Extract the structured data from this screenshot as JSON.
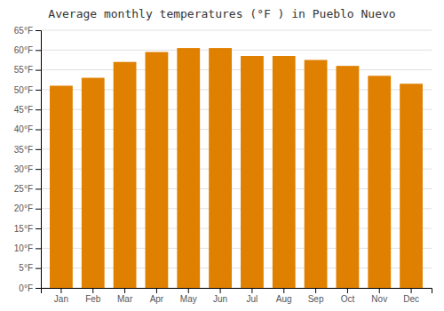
{
  "chart_data": {
    "type": "bar",
    "title": "Average monthly temperatures (°F ) in Pueblo Nuevo",
    "categories": [
      "Jan",
      "Feb",
      "Mar",
      "Apr",
      "May",
      "Jun",
      "Jul",
      "Aug",
      "Sep",
      "Oct",
      "Nov",
      "Dec"
    ],
    "values": [
      51,
      53,
      57,
      59.5,
      60.5,
      60.5,
      58.5,
      58.5,
      57.5,
      56,
      53.5,
      51.5
    ],
    "color": "#E08000",
    "ylim": [
      0,
      65
    ],
    "yticks": [
      {
        "value": 0,
        "label": "0°F"
      },
      {
        "value": 5,
        "label": "5°F"
      },
      {
        "value": 10,
        "label": "10°F"
      },
      {
        "value": 15,
        "label": "15°F"
      },
      {
        "value": 20,
        "label": "20°F"
      },
      {
        "value": 25,
        "label": "25°F"
      },
      {
        "value": 30,
        "label": "30°F"
      },
      {
        "value": 35,
        "label": "35°F"
      },
      {
        "value": 40,
        "label": "40°F"
      },
      {
        "value": 45,
        "label": "45°F"
      },
      {
        "value": 50,
        "label": "50°F"
      },
      {
        "value": 55,
        "label": "55°F"
      },
      {
        "value": 60,
        "label": "60°F"
      },
      {
        "value": 65,
        "label": "65°F"
      }
    ],
    "grid": true
  }
}
